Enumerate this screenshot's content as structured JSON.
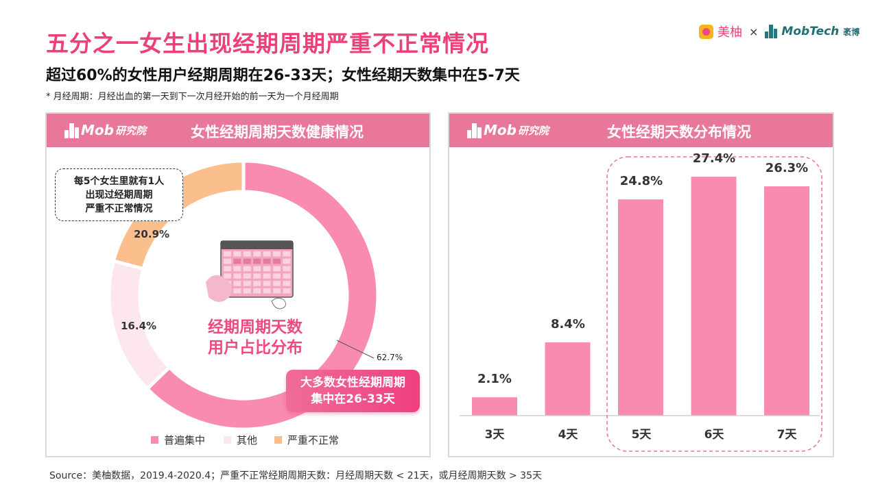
{
  "title": "五分之一女生出现经期周期严重不正常情况",
  "subtitle": "超过60%的女性用户经期周期在26-33天；女性经期天数集中在5-7天",
  "note": "* 月经周期：月经出血的第一天到下一次月经开始的前一天为一个月经周期",
  "logos": {
    "left_brand": "美柚",
    "separator": "×",
    "right_brand": "MobTech",
    "right_brand_cn": "袤博"
  },
  "panel_brand": {
    "mob": "Mob",
    "cn": "研究院"
  },
  "left_panel": {
    "title": "女性经期周期天数健康情况",
    "callout_lines": [
      "每5个女生里就有1人",
      "出现过经期周期",
      "严重不正常情况"
    ],
    "center_lines": [
      "经期周期天数",
      "用户占比分布"
    ],
    "highlight_lines": [
      "大多数女性经期周期",
      "集中在26-33天"
    ]
  },
  "right_panel": {
    "title": "女性经期天数分布情况"
  },
  "source": "Source：美柚数据，2019.4-2020.4；严重不正常经期周期天数：月经周期天数 < 21天，或月经周期天数 > 35天",
  "colors": {
    "accent": "#ee3f7a",
    "header": "#e8779a",
    "bar": "#f98bb0",
    "normal": "#f98bb0",
    "other": "#fde6ee",
    "abnormal": "#fbbf8e"
  },
  "chart_data": [
    {
      "type": "pie",
      "title": "女性经期周期天数健康情况",
      "categories": [
        "普遍集中",
        "其他",
        "严重不正常"
      ],
      "values": [
        62.7,
        16.4,
        20.9
      ],
      "labels": [
        "62.7%",
        "16.4%",
        "20.9%"
      ],
      "legend": "bottom"
    },
    {
      "type": "bar",
      "title": "女性经期天数分布情况",
      "categories": [
        "3天",
        "4天",
        "5天",
        "6天",
        "7天"
      ],
      "values": [
        2.1,
        8.4,
        24.8,
        27.4,
        26.3
      ],
      "labels": [
        "2.1%",
        "8.4%",
        "24.8%",
        "27.4%",
        "26.3%"
      ],
      "ylim": [
        0,
        30
      ],
      "grid": false
    }
  ]
}
